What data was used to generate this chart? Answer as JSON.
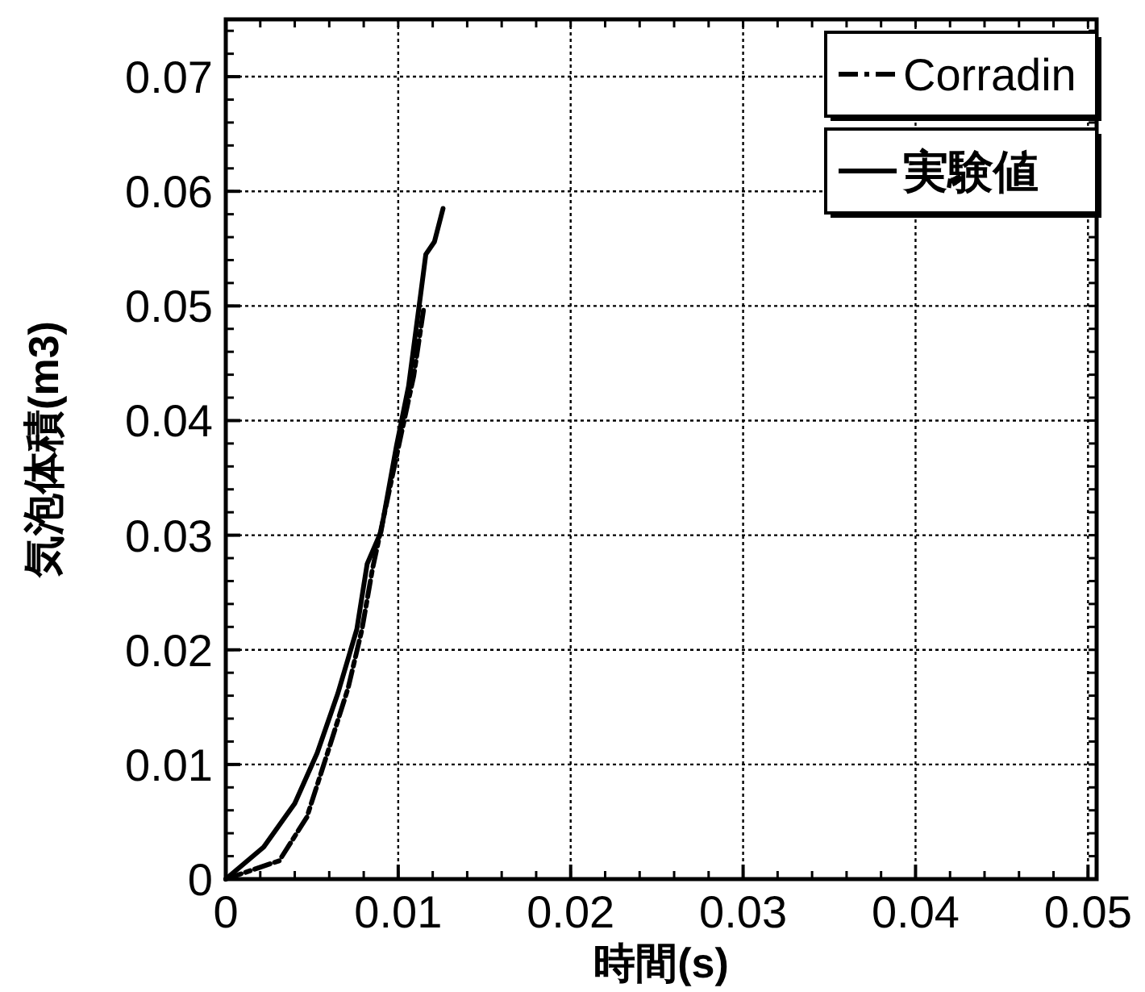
{
  "chart_data": {
    "type": "line",
    "xlabel": "時間(s)",
    "ylabel": "気泡体積(m3)",
    "xlim": [
      0,
      0.0505
    ],
    "ylim": [
      0,
      0.075
    ],
    "xticks": [
      0,
      0.01,
      0.02,
      0.03,
      0.04,
      0.05
    ],
    "yticks": [
      0,
      0.01,
      0.02,
      0.03,
      0.04,
      0.05,
      0.06,
      0.07
    ],
    "grid": true,
    "legend": "top right",
    "marker": "none",
    "series": [
      {
        "name": "Corradin",
        "color": "#000000",
        "line_style": "dashed",
        "x": [
          0,
          0.0031,
          0.0047,
          0.0059,
          0.0071,
          0.0079,
          0.0085,
          0.0093,
          0.0101,
          0.0109,
          0.0115
        ],
        "values": [
          0,
          0.0016,
          0.0054,
          0.011,
          0.0167,
          0.0218,
          0.027,
          0.0326,
          0.0383,
          0.0439,
          0.05
        ]
      },
      {
        "name": "実験値",
        "color": "#000000",
        "line_style": "solid",
        "x": [
          0,
          0.0022,
          0.004,
          0.0053,
          0.0065,
          0.0076,
          0.0082,
          0.009,
          0.0099,
          0.0106,
          0.0113,
          0.0116,
          0.0121,
          0.0126
        ],
        "values": [
          0,
          0.0028,
          0.0066,
          0.011,
          0.0162,
          0.0218,
          0.0275,
          0.0303,
          0.0378,
          0.043,
          0.051,
          0.0545,
          0.0556,
          0.0585
        ]
      }
    ]
  }
}
